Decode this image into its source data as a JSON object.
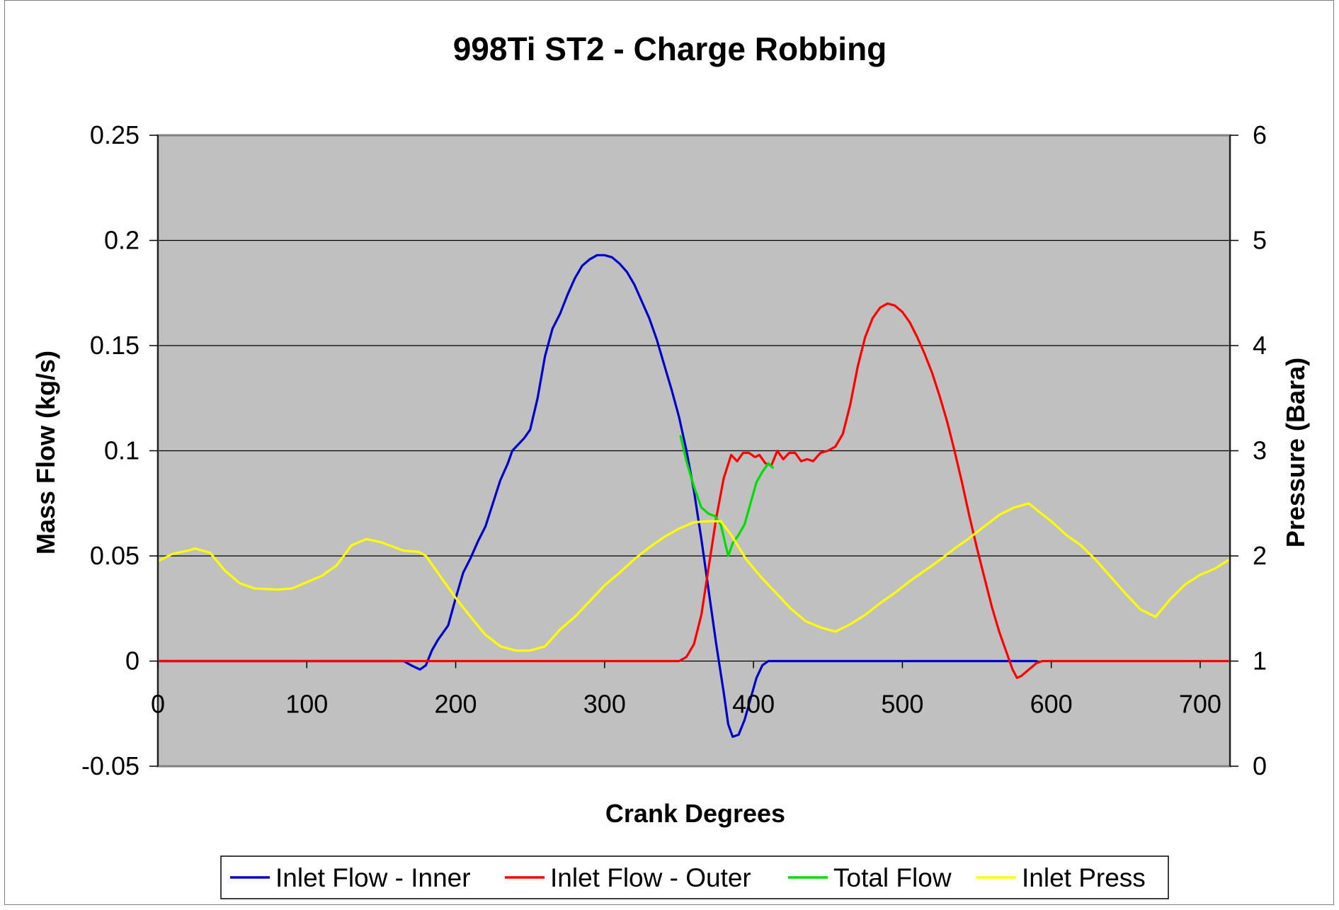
{
  "chart_data": {
    "type": "line",
    "title": "998Ti ST2 - Charge Robbing",
    "xlabel": "Crank Degrees",
    "ylabel": "Mass Flow (kg/s)",
    "y2label": "Pressure (Bara)",
    "xlim": [
      0,
      720
    ],
    "ylim": [
      -0.05,
      0.25
    ],
    "y2lim": [
      0,
      6
    ],
    "xticks": [
      0,
      100,
      200,
      300,
      400,
      500,
      600,
      700
    ],
    "yticks": [
      -0.05,
      0,
      0.05,
      0.1,
      0.15,
      0.2,
      0.25
    ],
    "yticklabels": [
      "-0.05",
      "0",
      "0.05",
      "0.1",
      "0.15",
      "0.2",
      "0.25"
    ],
    "y2ticks": [
      0,
      1,
      2,
      3,
      4,
      5,
      6
    ],
    "y2ticklabels": [
      "0",
      "1",
      "2",
      "3",
      "4",
      "5",
      "6"
    ],
    "grid": "horizontal",
    "plot_background": "#c0c0c0",
    "legend_position": "bottom",
    "series": [
      {
        "name": "Inlet Flow - Inner",
        "color": "#0000cc",
        "axis": "left",
        "points": [
          [
            0,
            0
          ],
          [
            165,
            0
          ],
          [
            170,
            -0.002
          ],
          [
            176,
            -0.004
          ],
          [
            180,
            -0.002
          ],
          [
            184,
            0.005
          ],
          [
            188,
            0.01
          ],
          [
            195,
            0.017
          ],
          [
            200,
            0.03
          ],
          [
            205,
            0.042
          ],
          [
            210,
            0.049
          ],
          [
            215,
            0.057
          ],
          [
            220,
            0.064
          ],
          [
            225,
            0.075
          ],
          [
            230,
            0.086
          ],
          [
            235,
            0.094
          ],
          [
            238,
            0.1
          ],
          [
            242,
            0.103
          ],
          [
            246,
            0.106
          ],
          [
            250,
            0.11
          ],
          [
            255,
            0.125
          ],
          [
            260,
            0.145
          ],
          [
            265,
            0.158
          ],
          [
            270,
            0.165
          ],
          [
            275,
            0.174
          ],
          [
            280,
            0.182
          ],
          [
            285,
            0.188
          ],
          [
            290,
            0.191
          ],
          [
            295,
            0.193
          ],
          [
            300,
            0.193
          ],
          [
            305,
            0.192
          ],
          [
            310,
            0.189
          ],
          [
            315,
            0.185
          ],
          [
            320,
            0.179
          ],
          [
            325,
            0.171
          ],
          [
            330,
            0.163
          ],
          [
            335,
            0.153
          ],
          [
            340,
            0.141
          ],
          [
            345,
            0.129
          ],
          [
            350,
            0.116
          ],
          [
            355,
            0.1
          ],
          [
            360,
            0.081
          ],
          [
            365,
            0.058
          ],
          [
            370,
            0.033
          ],
          [
            375,
            0.008
          ],
          [
            380,
            -0.015
          ],
          [
            383,
            -0.03
          ],
          [
            386,
            -0.036
          ],
          [
            390,
            -0.035
          ],
          [
            394,
            -0.028
          ],
          [
            398,
            -0.018
          ],
          [
            402,
            -0.008
          ],
          [
            406,
            -0.002
          ],
          [
            410,
            0
          ],
          [
            590,
            0
          ]
        ]
      },
      {
        "name": "Inlet Flow - Outer",
        "color": "#ff0000",
        "axis": "left",
        "points": [
          [
            0,
            0
          ],
          [
            350,
            0
          ],
          [
            355,
            0.002
          ],
          [
            360,
            0.008
          ],
          [
            365,
            0.022
          ],
          [
            370,
            0.045
          ],
          [
            375,
            0.068
          ],
          [
            380,
            0.087
          ],
          [
            385,
            0.098
          ],
          [
            389,
            0.095
          ],
          [
            393,
            0.099
          ],
          [
            397,
            0.099
          ],
          [
            401,
            0.097
          ],
          [
            404,
            0.098
          ],
          [
            408,
            0.094
          ],
          [
            412,
            0.093
          ],
          [
            416,
            0.1
          ],
          [
            420,
            0.096
          ],
          [
            424,
            0.099
          ],
          [
            428,
            0.099
          ],
          [
            432,
            0.095
          ],
          [
            436,
            0.096
          ],
          [
            440,
            0.095
          ],
          [
            445,
            0.099
          ],
          [
            450,
            0.1
          ],
          [
            455,
            0.102
          ],
          [
            460,
            0.108
          ],
          [
            465,
            0.122
          ],
          [
            470,
            0.14
          ],
          [
            475,
            0.154
          ],
          [
            480,
            0.163
          ],
          [
            485,
            0.168
          ],
          [
            490,
            0.17
          ],
          [
            495,
            0.169
          ],
          [
            500,
            0.166
          ],
          [
            505,
            0.161
          ],
          [
            510,
            0.154
          ],
          [
            515,
            0.146
          ],
          [
            520,
            0.137
          ],
          [
            525,
            0.126
          ],
          [
            530,
            0.114
          ],
          [
            535,
            0.1
          ],
          [
            540,
            0.085
          ],
          [
            545,
            0.069
          ],
          [
            550,
            0.054
          ],
          [
            555,
            0.04
          ],
          [
            560,
            0.026
          ],
          [
            565,
            0.014
          ],
          [
            570,
            0.004
          ],
          [
            574,
            -0.004
          ],
          [
            577,
            -0.008
          ],
          [
            580,
            -0.007
          ],
          [
            585,
            -0.004
          ],
          [
            590,
            -0.001
          ],
          [
            594,
            0
          ],
          [
            720,
            0
          ]
        ]
      },
      {
        "name": "Total Flow",
        "color": "#00dd00",
        "axis": "left",
        "points": [
          [
            351,
            0.107
          ],
          [
            355,
            0.095
          ],
          [
            360,
            0.083
          ],
          [
            365,
            0.073
          ],
          [
            370,
            0.07
          ],
          [
            374,
            0.069
          ],
          [
            378,
            0.065
          ],
          [
            381,
            0.056
          ],
          [
            383,
            0.05
          ],
          [
            386,
            0.056
          ],
          [
            390,
            0.06
          ],
          [
            394,
            0.065
          ],
          [
            398,
            0.075
          ],
          [
            402,
            0.085
          ],
          [
            406,
            0.09
          ],
          [
            410,
            0.094
          ],
          [
            413,
            0.092
          ]
        ]
      },
      {
        "name": "Inlet Press",
        "color": "#ffff00",
        "axis": "right",
        "points": [
          [
            0,
            1.95
          ],
          [
            10,
            2.02
          ],
          [
            20,
            2.05
          ],
          [
            25,
            2.07
          ],
          [
            35,
            2.03
          ],
          [
            45,
            1.86
          ],
          [
            55,
            1.74
          ],
          [
            65,
            1.69
          ],
          [
            80,
            1.68
          ],
          [
            90,
            1.69
          ],
          [
            100,
            1.75
          ],
          [
            110,
            1.81
          ],
          [
            120,
            1.91
          ],
          [
            130,
            2.1
          ],
          [
            140,
            2.16
          ],
          [
            150,
            2.13
          ],
          [
            165,
            2.05
          ],
          [
            175,
            2.04
          ],
          [
            180,
            2.0
          ],
          [
            190,
            1.8
          ],
          [
            200,
            1.6
          ],
          [
            210,
            1.42
          ],
          [
            220,
            1.25
          ],
          [
            230,
            1.14
          ],
          [
            240,
            1.1
          ],
          [
            250,
            1.1
          ],
          [
            260,
            1.14
          ],
          [
            270,
            1.3
          ],
          [
            280,
            1.42
          ],
          [
            290,
            1.57
          ],
          [
            300,
            1.72
          ],
          [
            310,
            1.84
          ],
          [
            320,
            1.97
          ],
          [
            330,
            2.08
          ],
          [
            340,
            2.18
          ],
          [
            350,
            2.26
          ],
          [
            360,
            2.32
          ],
          [
            370,
            2.33
          ],
          [
            378,
            2.33
          ],
          [
            385,
            2.2
          ],
          [
            395,
            1.97
          ],
          [
            405,
            1.8
          ],
          [
            415,
            1.65
          ],
          [
            425,
            1.5
          ],
          [
            435,
            1.38
          ],
          [
            445,
            1.32
          ],
          [
            455,
            1.28
          ],
          [
            465,
            1.35
          ],
          [
            475,
            1.44
          ],
          [
            485,
            1.55
          ],
          [
            495,
            1.65
          ],
          [
            505,
            1.76
          ],
          [
            515,
            1.86
          ],
          [
            525,
            1.96
          ],
          [
            535,
            2.07
          ],
          [
            545,
            2.17
          ],
          [
            555,
            2.28
          ],
          [
            565,
            2.39
          ],
          [
            575,
            2.46
          ],
          [
            585,
            2.5
          ],
          [
            590,
            2.44
          ],
          [
            600,
            2.33
          ],
          [
            610,
            2.2
          ],
          [
            620,
            2.1
          ],
          [
            630,
            1.96
          ],
          [
            640,
            1.8
          ],
          [
            650,
            1.64
          ],
          [
            660,
            1.49
          ],
          [
            670,
            1.42
          ],
          [
            680,
            1.59
          ],
          [
            690,
            1.73
          ],
          [
            700,
            1.82
          ],
          [
            710,
            1.88
          ],
          [
            720,
            1.97
          ]
        ]
      }
    ]
  }
}
